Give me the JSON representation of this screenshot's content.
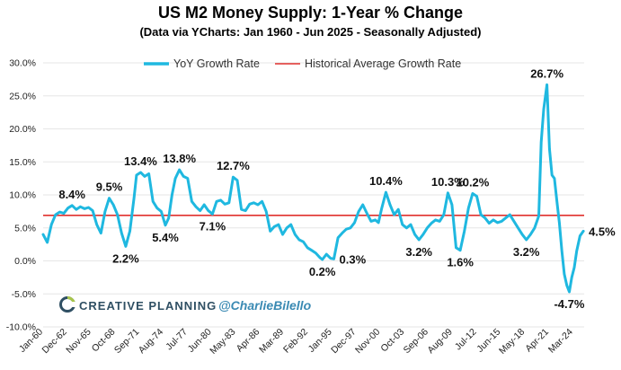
{
  "header": {
    "title": "US M2 Money Supply: 1-Year % Change",
    "subtitle": "(Data via YCharts: Jan 1960 - Jun 2025 - Seasonally Adjusted)"
  },
  "branding": {
    "logo_text": "CREATIVE PLANNING",
    "handle": "@CharlieBilello"
  },
  "colors": {
    "series": "#1fb8e0",
    "average": "#e0302e"
  },
  "chart_data": {
    "type": "line",
    "title": "US M2 Money Supply: 1-Year % Change",
    "subtitle": "(Data via YCharts: Jan 1960 - Jun 2025 - Seasonally Adjusted)",
    "xlabel": "",
    "ylabel": "",
    "ylim": [
      -10,
      30
    ],
    "y_ticks": [
      "-10.0%",
      "-5.0%",
      "0.0%",
      "5.0%",
      "10.0%",
      "15.0%",
      "20.0%",
      "25.0%",
      "30.0%"
    ],
    "x_ticks": [
      "Jan-60",
      "Dec-62",
      "Nov-65",
      "Oct-68",
      "Sep-71",
      "Aug-74",
      "Jul-77",
      "Jun-80",
      "May-83",
      "Apr-86",
      "Mar-89",
      "Feb-92",
      "Jan-95",
      "Dec-97",
      "Nov-00",
      "Oct-03",
      "Sep-06",
      "Aug-09",
      "Jul-12",
      "Jun-15",
      "May-18",
      "Apr-21",
      "Mar-24"
    ],
    "grid": true,
    "legend_position": "top",
    "series": [
      {
        "name": "YoY Growth Rate",
        "points": [
          [
            1960.0,
            4.0
          ],
          [
            1960.5,
            2.8
          ],
          [
            1961.0,
            5.5
          ],
          [
            1961.5,
            7.0
          ],
          [
            1962.0,
            7.4
          ],
          [
            1962.5,
            7.2
          ],
          [
            1963.0,
            8.0
          ],
          [
            1963.5,
            8.4
          ],
          [
            1964.0,
            7.8
          ],
          [
            1964.5,
            8.2
          ],
          [
            1965.0,
            7.9
          ],
          [
            1965.5,
            8.1
          ],
          [
            1966.0,
            7.6
          ],
          [
            1966.5,
            5.5
          ],
          [
            1967.0,
            4.2
          ],
          [
            1967.5,
            7.5
          ],
          [
            1968.0,
            9.5
          ],
          [
            1968.5,
            8.5
          ],
          [
            1969.0,
            7.0
          ],
          [
            1969.5,
            4.2
          ],
          [
            1970.0,
            2.2
          ],
          [
            1970.5,
            4.5
          ],
          [
            1971.0,
            9.5
          ],
          [
            1971.3,
            13.0
          ],
          [
            1971.8,
            13.4
          ],
          [
            1972.3,
            12.8
          ],
          [
            1972.8,
            13.2
          ],
          [
            1973.3,
            9.0
          ],
          [
            1973.8,
            8.0
          ],
          [
            1974.3,
            7.5
          ],
          [
            1974.8,
            5.4
          ],
          [
            1975.2,
            6.5
          ],
          [
            1975.6,
            10.0
          ],
          [
            1976.0,
            12.5
          ],
          [
            1976.5,
            13.8
          ],
          [
            1977.0,
            12.8
          ],
          [
            1977.5,
            12.5
          ],
          [
            1978.0,
            9.0
          ],
          [
            1978.5,
            8.2
          ],
          [
            1979.0,
            7.6
          ],
          [
            1979.5,
            8.5
          ],
          [
            1980.0,
            7.6
          ],
          [
            1980.5,
            7.1
          ],
          [
            1981.0,
            9.0
          ],
          [
            1981.5,
            9.2
          ],
          [
            1982.0,
            8.6
          ],
          [
            1982.5,
            8.8
          ],
          [
            1983.0,
            12.7
          ],
          [
            1983.5,
            12.2
          ],
          [
            1984.0,
            7.8
          ],
          [
            1984.5,
            7.6
          ],
          [
            1985.0,
            8.6
          ],
          [
            1985.5,
            8.8
          ],
          [
            1986.0,
            8.5
          ],
          [
            1986.5,
            9.0
          ],
          [
            1987.0,
            7.5
          ],
          [
            1987.5,
            4.5
          ],
          [
            1988.0,
            5.2
          ],
          [
            1988.5,
            5.5
          ],
          [
            1989.0,
            4.0
          ],
          [
            1989.5,
            5.0
          ],
          [
            1990.0,
            5.5
          ],
          [
            1990.5,
            4.0
          ],
          [
            1991.0,
            3.2
          ],
          [
            1991.5,
            2.9
          ],
          [
            1992.0,
            2.0
          ],
          [
            1992.5,
            1.6
          ],
          [
            1993.0,
            1.2
          ],
          [
            1993.5,
            0.5
          ],
          [
            1993.8,
            0.2
          ],
          [
            1994.3,
            1.0
          ],
          [
            1994.8,
            0.4
          ],
          [
            1995.2,
            0.3
          ],
          [
            1995.7,
            3.5
          ],
          [
            1996.2,
            4.2
          ],
          [
            1996.7,
            4.8
          ],
          [
            1997.2,
            5.0
          ],
          [
            1997.7,
            5.8
          ],
          [
            1998.2,
            7.5
          ],
          [
            1998.7,
            8.5
          ],
          [
            1999.2,
            7.2
          ],
          [
            1999.7,
            6.0
          ],
          [
            2000.2,
            6.2
          ],
          [
            2000.6,
            5.8
          ],
          [
            2001.0,
            8.0
          ],
          [
            2001.5,
            10.4
          ],
          [
            2002.0,
            8.5
          ],
          [
            2002.5,
            7.0
          ],
          [
            2003.0,
            7.8
          ],
          [
            2003.5,
            5.5
          ],
          [
            2004.0,
            5.0
          ],
          [
            2004.5,
            5.5
          ],
          [
            2005.0,
            4.0
          ],
          [
            2005.5,
            3.2
          ],
          [
            2006.0,
            4.0
          ],
          [
            2006.5,
            5.0
          ],
          [
            2007.0,
            5.7
          ],
          [
            2007.5,
            6.2
          ],
          [
            2008.0,
            6.0
          ],
          [
            2008.5,
            7.0
          ],
          [
            2009.0,
            10.3
          ],
          [
            2009.5,
            8.5
          ],
          [
            2010.0,
            2.0
          ],
          [
            2010.5,
            1.6
          ],
          [
            2011.0,
            4.5
          ],
          [
            2011.5,
            8.0
          ],
          [
            2012.0,
            10.2
          ],
          [
            2012.5,
            9.8
          ],
          [
            2013.0,
            7.0
          ],
          [
            2013.5,
            6.5
          ],
          [
            2014.0,
            5.7
          ],
          [
            2014.5,
            6.2
          ],
          [
            2015.0,
            5.8
          ],
          [
            2015.5,
            6.0
          ],
          [
            2016.0,
            6.5
          ],
          [
            2016.5,
            7.0
          ],
          [
            2017.0,
            6.0
          ],
          [
            2017.5,
            5.0
          ],
          [
            2018.0,
            4.0
          ],
          [
            2018.5,
            3.2
          ],
          [
            2019.0,
            4.0
          ],
          [
            2019.5,
            5.0
          ],
          [
            2020.0,
            6.8
          ],
          [
            2020.3,
            18.0
          ],
          [
            2020.6,
            23.0
          ],
          [
            2021.0,
            26.7
          ],
          [
            2021.3,
            17.0
          ],
          [
            2021.6,
            13.0
          ],
          [
            2021.9,
            12.5
          ],
          [
            2022.2,
            9.0
          ],
          [
            2022.5,
            5.8
          ],
          [
            2022.8,
            1.5
          ],
          [
            2023.1,
            -2.0
          ],
          [
            2023.4,
            -3.7
          ],
          [
            2023.7,
            -4.7
          ],
          [
            2024.0,
            -2.5
          ],
          [
            2024.3,
            -1.0
          ],
          [
            2024.6,
            1.5
          ],
          [
            2025.0,
            3.8
          ],
          [
            2025.4,
            4.5
          ]
        ]
      },
      {
        "name": "Historical Average Growth Rate",
        "value": 6.9
      }
    ],
    "annotations": [
      {
        "text": "8.4%",
        "x": 1963.5,
        "y": 8.4,
        "pos": "above"
      },
      {
        "text": "9.5%",
        "x": 1968.0,
        "y": 9.5,
        "pos": "above"
      },
      {
        "text": "2.2%",
        "x": 1970.0,
        "y": 2.2,
        "pos": "below"
      },
      {
        "text": "13.4%",
        "x": 1971.8,
        "y": 13.4,
        "pos": "above"
      },
      {
        "text": "13.8%",
        "x": 1976.5,
        "y": 13.8,
        "pos": "above"
      },
      {
        "text": "5.4%",
        "x": 1974.8,
        "y": 5.4,
        "pos": "below"
      },
      {
        "text": "7.1%",
        "x": 1980.5,
        "y": 7.1,
        "pos": "below"
      },
      {
        "text": "12.7%",
        "x": 1983.0,
        "y": 12.7,
        "pos": "above"
      },
      {
        "text": "0.2%",
        "x": 1993.8,
        "y": 0.2,
        "pos": "below"
      },
      {
        "text": "0.3%",
        "x": 1995.2,
        "y": 0.3,
        "pos": "right"
      },
      {
        "text": "10.4%",
        "x": 2001.5,
        "y": 10.4,
        "pos": "above"
      },
      {
        "text": "3.2%",
        "x": 2005.5,
        "y": 3.2,
        "pos": "below"
      },
      {
        "text": "10.3%",
        "x": 2009.0,
        "y": 10.3,
        "pos": "above"
      },
      {
        "text": "1.6%",
        "x": 2010.5,
        "y": 1.6,
        "pos": "below"
      },
      {
        "text": "10.2%",
        "x": 2012.0,
        "y": 10.2,
        "pos": "above"
      },
      {
        "text": "3.2%",
        "x": 2018.5,
        "y": 3.2,
        "pos": "below"
      },
      {
        "text": "26.7%",
        "x": 2021.0,
        "y": 26.7,
        "pos": "above"
      },
      {
        "text": "-4.7%",
        "x": 2023.7,
        "y": -4.7,
        "pos": "below"
      },
      {
        "text": "4.5%",
        "x": 2025.4,
        "y": 4.5,
        "pos": "right"
      }
    ]
  }
}
